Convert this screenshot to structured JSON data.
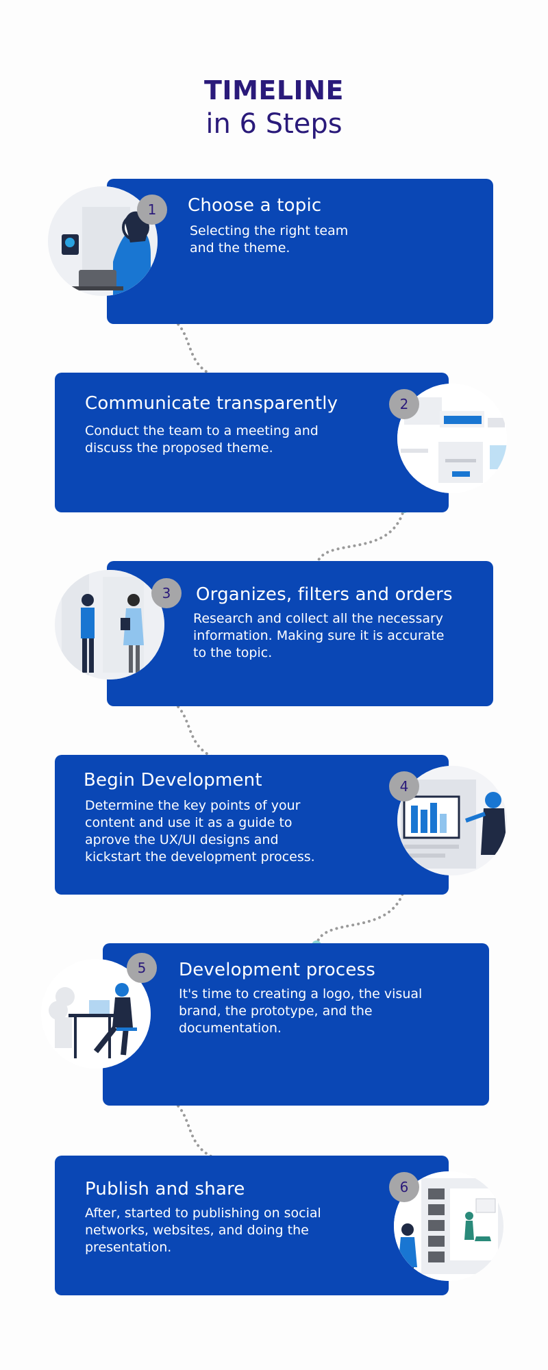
{
  "header": {
    "title": "TIMELINE",
    "subtitle": "in 6 Steps"
  },
  "colors": {
    "card": "#0a47b5",
    "title": "#2a1a7a",
    "badge": "#a6a6a8",
    "dot": "#8fd6d6",
    "dotted_line": "#9a9a9a"
  },
  "steps": [
    {
      "number": "1",
      "title": "Choose a topic",
      "line1": "Selecting the right team",
      "line2": "and the theme.",
      "illustration": "woman-with-laptop-icon"
    },
    {
      "number": "2",
      "title": "Communicate transparently",
      "line1": "Conduct the team to a meeting and",
      "line2": "discuss the proposed theme.",
      "illustration": "browser-windows-icon"
    },
    {
      "number": "3",
      "title": "Organizes, filters and orders",
      "line1": "Research and collect all the necessary",
      "line2": "information. Making sure it is accurate",
      "line3": "to the topic.",
      "illustration": "two-people-talking-icon"
    },
    {
      "number": "4",
      "title": "Begin Development",
      "line1": "Determine the key points of your",
      "line2": "content and use it as a guide to",
      "line3": "aprove the UX/UI designs and",
      "line4": "kickstart the development process.",
      "illustration": "person-at-dashboard-icon"
    },
    {
      "number": "5",
      "title": "Development process",
      "line1": "It's time to creating a logo, the visual",
      "line2": "brand, the prototype, and the",
      "line3": "documentation.",
      "illustration": "person-at-desk-icon"
    },
    {
      "number": "6",
      "title": "Publish and share",
      "line1": "After, started to publishing on social",
      "line2": "networks, websites, and doing the",
      "line3": "presentation.",
      "illustration": "person-with-gallery-icon"
    }
  ]
}
